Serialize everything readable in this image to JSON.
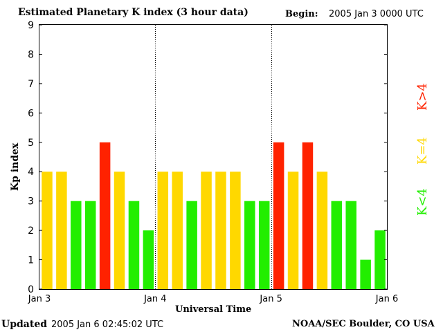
{
  "header": {
    "title": "Estimated Planetary K index (3 hour data)",
    "begin_label": "Begin:",
    "begin_value": "2005 Jan 3 0000 UTC"
  },
  "footer": {
    "updated_label": "Updated",
    "updated_value": "2005 Jan  6 02:45:02 UTC",
    "source": "NOAA/SEC Boulder, CO USA"
  },
  "legend": {
    "high": "K>4",
    "mid": "K=4",
    "low": "K<4"
  },
  "colors": {
    "high": "#ff2200",
    "mid": "#ffd800",
    "low": "#22ee00"
  },
  "chart_data": {
    "type": "bar",
    "title": "Estimated Planetary K index (3 hour data)",
    "xlabel": "Universal Time",
    "ylabel": "Kp index",
    "ylim": [
      0,
      9
    ],
    "yticks": [
      0,
      1,
      2,
      3,
      4,
      5,
      6,
      7,
      8,
      9
    ],
    "xtick_labels": [
      "Jan 3",
      "Jan 4",
      "Jan 5",
      "Jan 6"
    ],
    "interval_hours": 3,
    "values": [
      4,
      4,
      3,
      3,
      5,
      4,
      3,
      2,
      4,
      4,
      3,
      4,
      4,
      4,
      3,
      3,
      5,
      4,
      5,
      4,
      3,
      3,
      1,
      2
    ]
  }
}
